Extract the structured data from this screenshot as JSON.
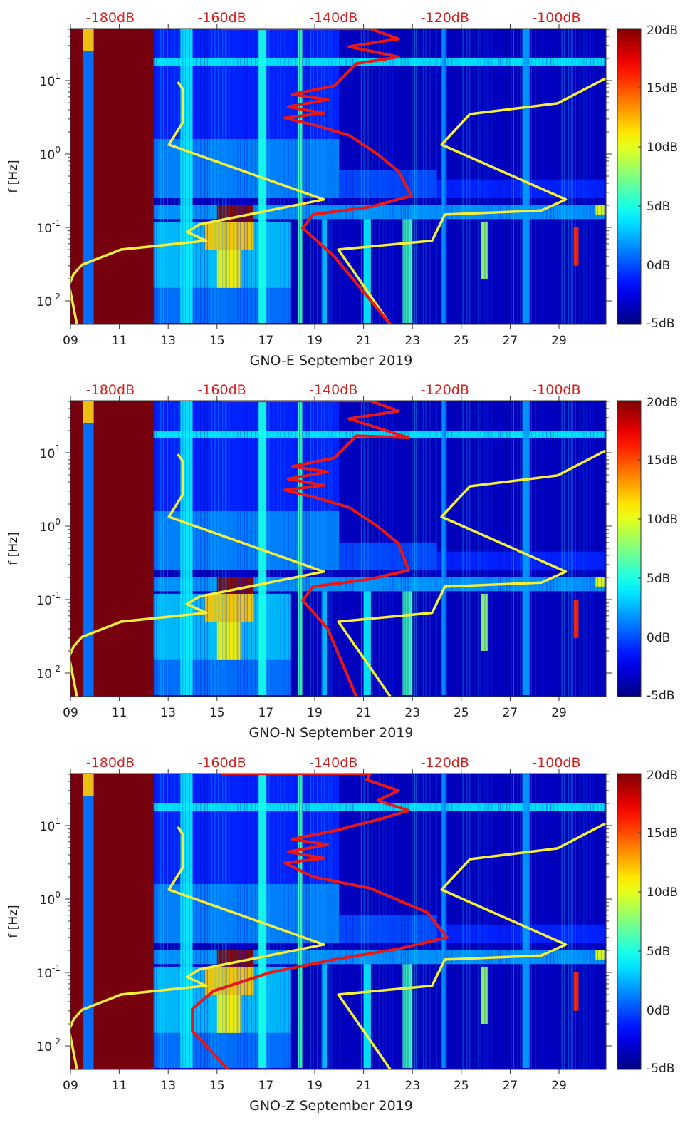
{
  "colors": {
    "top_axis": "#d42020",
    "model_curve": "#f5ef3a",
    "measured_curve": "#e81818"
  },
  "shared_axes": {
    "x_ticks": [
      "09",
      "11",
      "13",
      "15",
      "17",
      "19",
      "21",
      "23",
      "25",
      "27",
      "29"
    ],
    "x_tick_days": [
      9,
      11,
      13,
      15,
      17,
      19,
      21,
      23,
      25,
      27,
      29
    ],
    "xlim_days": [
      9,
      30.9
    ],
    "ylabel": "f [Hz]",
    "ylim_hz": [
      0.0045,
      55
    ],
    "y_ticks": [
      {
        "base": "10",
        "exp": "-2",
        "value": 0.01
      },
      {
        "base": "10",
        "exp": "-1",
        "value": 0.1
      },
      {
        "base": "10",
        "exp": "0",
        "value": 1
      },
      {
        "base": "10",
        "exp": "1",
        "value": 10
      }
    ],
    "top_ticks": [
      {
        "label": "-180dB",
        "db": -180
      },
      {
        "label": "-160dB",
        "db": -160
      },
      {
        "label": "-140dB",
        "db": -140
      },
      {
        "label": "-120dB",
        "db": -120
      },
      {
        "label": "-100dB",
        "db": -100
      }
    ],
    "colorbar": {
      "range_db": [
        -5,
        20
      ],
      "colormap": "jet",
      "ticks": [
        {
          "label": "20dB",
          "v": 20
        },
        {
          "label": "15dB",
          "v": 15
        },
        {
          "label": "10dB",
          "v": 10
        },
        {
          "label": "5dB",
          "v": 5
        },
        {
          "label": "0dB",
          "v": 0
        },
        {
          "label": "-5dB",
          "v": -5
        }
      ]
    }
  },
  "spectrogram_features_day_hz_db": [
    [
      12.4,
      30.9,
      0.0045,
      55,
      -3.5
    ],
    [
      9.0,
      9.5,
      0.0045,
      55,
      20
    ],
    [
      9.95,
      12.4,
      0.0045,
      55,
      20
    ],
    [
      9.5,
      9.95,
      0.0045,
      55,
      1
    ],
    [
      9.5,
      9.95,
      25,
      55,
      12
    ],
    [
      12.4,
      20,
      1.6,
      55,
      -1
    ],
    [
      12.4,
      20,
      0.25,
      1.6,
      1.5
    ],
    [
      20,
      24,
      0.25,
      0.6,
      0
    ],
    [
      24,
      30.9,
      0.25,
      0.45,
      -1
    ],
    [
      12.4,
      18,
      0.005,
      0.015,
      1
    ],
    [
      12.4,
      18,
      0.015,
      0.12,
      3
    ],
    [
      12.4,
      30.9,
      0.13,
      0.2,
      2
    ],
    [
      14.5,
      16.5,
      0.05,
      0.12,
      12
    ],
    [
      15,
      16,
      0.015,
      0.05,
      11
    ],
    [
      15,
      16.5,
      0.12,
      0.2,
      20
    ],
    [
      12.4,
      30.9,
      16,
      20,
      4
    ],
    [
      13.5,
      14,
      0.005,
      55,
      4
    ],
    [
      16.7,
      17,
      0.005,
      55,
      5
    ],
    [
      18.3,
      18.5,
      0.005,
      55,
      6
    ],
    [
      19.3,
      19.5,
      0.005,
      0.13,
      3
    ],
    [
      21,
      21.3,
      0.005,
      0.13,
      4
    ],
    [
      22.6,
      23,
      0.005,
      0.13,
      6
    ],
    [
      24.2,
      24.4,
      0.005,
      55,
      2
    ],
    [
      25.8,
      26.1,
      0.02,
      0.12,
      8
    ],
    [
      27.5,
      27.8,
      0.005,
      55,
      2
    ],
    [
      29.6,
      29.8,
      0.03,
      0.1,
      16
    ],
    [
      30.5,
      30.9,
      0.15,
      0.2,
      10
    ]
  ],
  "model_curves_db_hz": [
    [
      [
        -186.0,
        0.0048
      ],
      [
        -187.4,
        0.0164
      ],
      [
        -186.6,
        0.023
      ],
      [
        -185.1,
        0.031
      ],
      [
        -178.1,
        0.05
      ],
      [
        -162.8,
        0.066
      ],
      [
        -166.3,
        0.087
      ],
      [
        -164.0,
        0.11
      ],
      [
        -141.7,
        0.24
      ],
      [
        -169.5,
        1.34
      ],
      [
        -167.0,
        2.7
      ],
      [
        -167.0,
        7.6
      ],
      [
        -167.9,
        9.6
      ]
    ],
    [
      [
        -129.8,
        0.0048
      ],
      [
        -139.1,
        0.05
      ],
      [
        -122.3,
        0.066
      ],
      [
        -120.0,
        0.15
      ],
      [
        -102.7,
        0.17
      ],
      [
        -98.3,
        0.24
      ],
      [
        -120.6,
        1.34
      ],
      [
        -115.5,
        3.5
      ],
      [
        -99.8,
        4.9
      ],
      [
        -91.2,
        10.7
      ]
    ]
  ],
  "chart_data": [
    {
      "type": "heatmap",
      "title": "GNO-E September 2019",
      "xlabel": "GNO-E September 2019",
      "measured_curve_db_hz": [
        [
          -129.8,
          0.0048
        ],
        [
          -139.8,
          0.04
        ],
        [
          -145.5,
          0.098
        ],
        [
          -143.6,
          0.15
        ],
        [
          -133.4,
          0.19
        ],
        [
          -126.0,
          0.27
        ],
        [
          -128.3,
          0.58
        ],
        [
          -132.1,
          1.0
        ],
        [
          -137.2,
          1.8
        ],
        [
          -143.6,
          2.5
        ],
        [
          -148.7,
          3.1
        ],
        [
          -141.7,
          3.6
        ],
        [
          -148.1,
          4.4
        ],
        [
          -141.0,
          5.5
        ],
        [
          -147.4,
          6.5
        ],
        [
          -139.8,
          8.5
        ],
        [
          -135.9,
          17
        ],
        [
          -128.3,
          21
        ],
        [
          -137.2,
          29
        ],
        [
          -128.3,
          37
        ],
        [
          -133.4,
          51
        ],
        [
          -160.2,
          51
        ]
      ]
    },
    {
      "type": "heatmap",
      "title": "GNO-N September 2019",
      "xlabel": "GNO-N September 2019",
      "measured_curve_db_hz": [
        [
          -135.9,
          0.0048
        ],
        [
          -141.0,
          0.04
        ],
        [
          -145.5,
          0.098
        ],
        [
          -143.6,
          0.15
        ],
        [
          -133.4,
          0.19
        ],
        [
          -126.5,
          0.25
        ],
        [
          -128.3,
          0.58
        ],
        [
          -132.1,
          1.0
        ],
        [
          -137.2,
          1.8
        ],
        [
          -143.6,
          2.5
        ],
        [
          -148.7,
          3.1
        ],
        [
          -141.7,
          3.6
        ],
        [
          -148.1,
          4.4
        ],
        [
          -141.0,
          5.5
        ],
        [
          -147.4,
          6.5
        ],
        [
          -139.8,
          8.5
        ],
        [
          -135.9,
          17
        ],
        [
          -126.5,
          16
        ],
        [
          -137.2,
          29
        ],
        [
          -128.3,
          37
        ],
        [
          -133.4,
          51
        ],
        [
          -160.2,
          51
        ]
      ]
    },
    {
      "type": "heatmap",
      "title": "GNO-Z September 2019",
      "xlabel": "GNO-Z September 2019",
      "measured_curve_db_hz": [
        [
          -158.9,
          0.0048
        ],
        [
          -165.3,
          0.016
        ],
        [
          -165.3,
          0.032
        ],
        [
          -161.5,
          0.056
        ],
        [
          -151.3,
          0.1
        ],
        [
          -139.8,
          0.15
        ],
        [
          -128.3,
          0.21
        ],
        [
          -119.6,
          0.3
        ],
        [
          -123.2,
          0.66
        ],
        [
          -133.4,
          1.4
        ],
        [
          -143.6,
          2.0
        ],
        [
          -148.7,
          3.1
        ],
        [
          -141.7,
          3.6
        ],
        [
          -148.1,
          4.4
        ],
        [
          -141.0,
          5.5
        ],
        [
          -147.4,
          6.5
        ],
        [
          -139.8,
          8.5
        ],
        [
          -132.0,
          12
        ],
        [
          -126.5,
          16
        ],
        [
          -132.0,
          22
        ],
        [
          -128.3,
          30
        ],
        [
          -134.0,
          42
        ],
        [
          -133.4,
          51
        ],
        [
          -160.2,
          51
        ]
      ]
    }
  ]
}
